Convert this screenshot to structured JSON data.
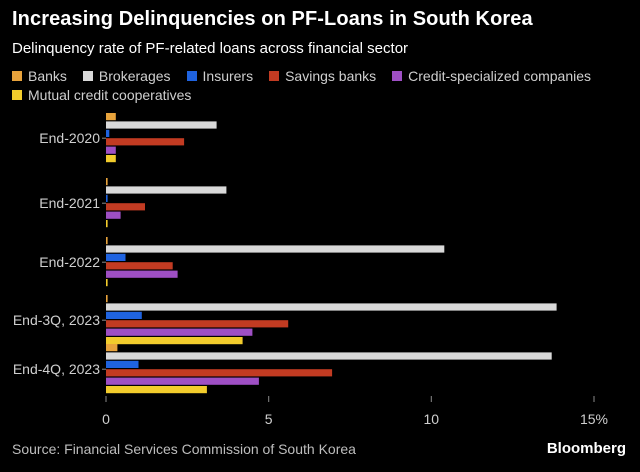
{
  "chart_data": {
    "type": "bar",
    "orientation": "horizontal",
    "title": "Increasing Delinquencies on PF-Loans in South Korea",
    "subtitle": "Delinquency rate of PF-related loans across financial sector",
    "categories": [
      "End-2020",
      "End-2021",
      "End-2022",
      "End-3Q, 2023",
      "End-4Q, 2023"
    ],
    "series": [
      {
        "name": "Banks",
        "color": "#E8A33C",
        "values": [
          0.3,
          0.05,
          0.05,
          0.05,
          0.35
        ]
      },
      {
        "name": "Brokerages",
        "color": "#D9D9D9",
        "values": [
          3.4,
          3.7,
          10.4,
          13.85,
          13.7
        ]
      },
      {
        "name": "Insurers",
        "color": "#1F63E0",
        "values": [
          0.1,
          0.05,
          0.6,
          1.1,
          1.0
        ]
      },
      {
        "name": "Savings banks",
        "color": "#C23B22",
        "values": [
          2.4,
          1.2,
          2.05,
          5.6,
          6.95
        ]
      },
      {
        "name": "Credit-specialized companies",
        "color": "#9E4FC4",
        "values": [
          0.3,
          0.45,
          2.2,
          4.5,
          4.7
        ]
      },
      {
        "name": "Mutual credit cooperatives",
        "color": "#F2CC2C",
        "values": [
          0.3,
          0.05,
          0.05,
          4.2,
          3.1
        ]
      }
    ],
    "xlim": [
      0,
      15
    ],
    "x_ticks": [
      "0",
      "5",
      "10",
      "15%"
    ],
    "x_tick_values": [
      0,
      5,
      10,
      15
    ],
    "xlabel": "",
    "ylabel": "",
    "grid": false,
    "legend_position": "top"
  },
  "footer": {
    "source": "Source: Financial Services Commission of South Korea",
    "brand": "Bloomberg"
  }
}
